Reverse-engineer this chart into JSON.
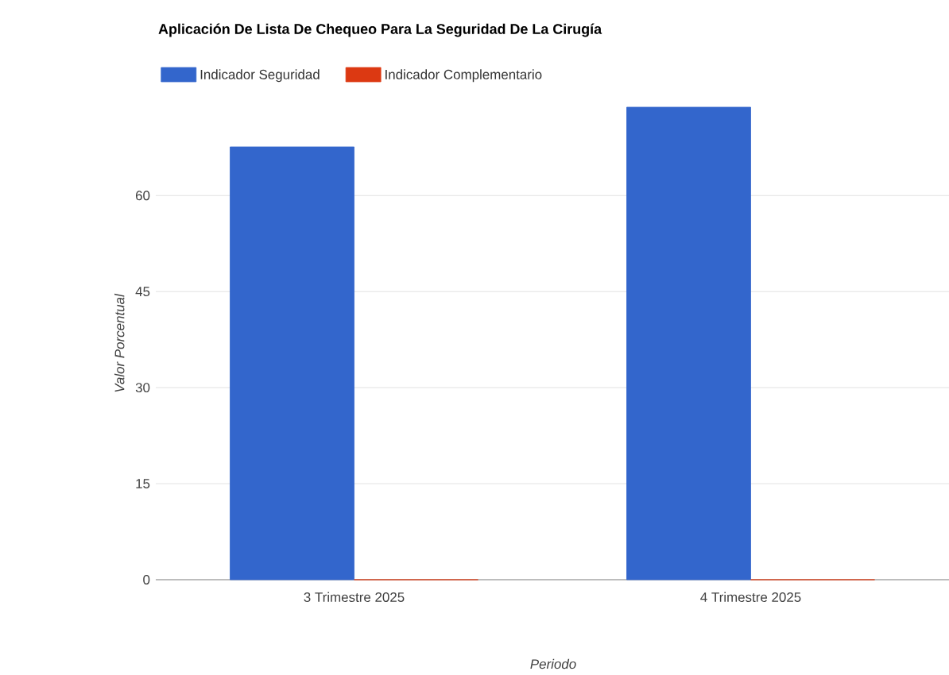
{
  "chart_data": {
    "type": "bar",
    "title": "Aplicación De Lista De Chequeo Para La Seguridad De La Cirugía",
    "xlabel": "Periodo",
    "ylabel": "Valor Porcentual",
    "categories": [
      "3 Trimestre 2025",
      "4 Trimestre 2025"
    ],
    "series": [
      {
        "name": "Indicador Seguridad",
        "color": "#3366cc",
        "values": [
          67.6,
          73.8
        ]
      },
      {
        "name": "Indicador Complementario",
        "color": "#dc3912",
        "values": [
          0,
          0
        ]
      }
    ],
    "ylim": [
      0,
      73.8
    ],
    "yticks": [
      0,
      15,
      30,
      45,
      60
    ],
    "grid": "y",
    "legend": "top left"
  }
}
